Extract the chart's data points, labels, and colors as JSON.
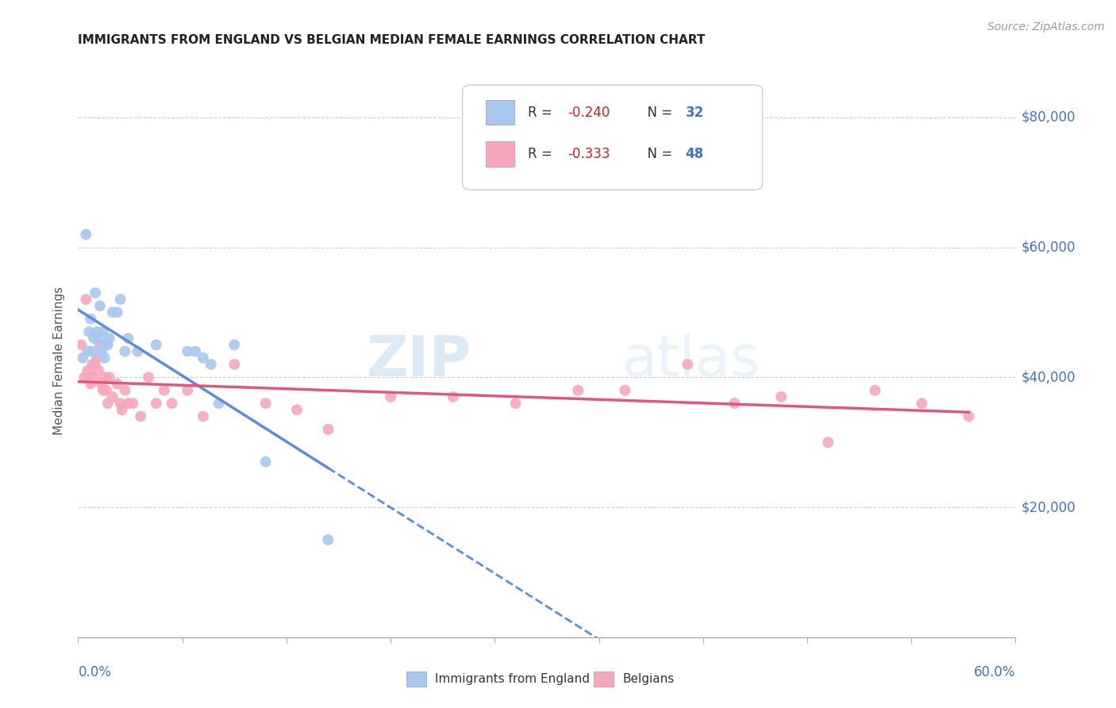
{
  "title": "IMMIGRANTS FROM ENGLAND VS BELGIAN MEDIAN FEMALE EARNINGS CORRELATION CHART",
  "source": "Source: ZipAtlas.com",
  "ylabel": "Median Female Earnings",
  "xmin": 0.0,
  "xmax": 0.6,
  "ymin": 0,
  "ymax": 85000,
  "legend_label1": "Immigrants from England",
  "legend_label2": "Belgians",
  "blue_color": "#A8C8F0",
  "pink_color": "#F5A8BC",
  "blue_line": "#5B8DD9",
  "pink_line": "#E05878",
  "axis_label_color": "#4472C4",
  "watermark": "ZIPatlas",
  "watermark_zip": "ZIP",
  "watermark_atlas": "atlas",
  "england_x": [
    0.003,
    0.005,
    0.006,
    0.007,
    0.008,
    0.009,
    0.01,
    0.011,
    0.012,
    0.013,
    0.014,
    0.015,
    0.016,
    0.017,
    0.018,
    0.019,
    0.02,
    0.022,
    0.025,
    0.027,
    0.03,
    0.032,
    0.038,
    0.05,
    0.07,
    0.075,
    0.08,
    0.085,
    0.09,
    0.1,
    0.12,
    0.16
  ],
  "england_y": [
    43000,
    62000,
    44000,
    47000,
    49000,
    44000,
    46000,
    53000,
    47000,
    46000,
    51000,
    44000,
    47000,
    43000,
    45000,
    45000,
    46000,
    50000,
    50000,
    52000,
    44000,
    46000,
    44000,
    45000,
    44000,
    44000,
    43000,
    42000,
    36000,
    45000,
    27000,
    15000
  ],
  "belgian_x": [
    0.002,
    0.004,
    0.005,
    0.006,
    0.007,
    0.008,
    0.009,
    0.01,
    0.011,
    0.012,
    0.013,
    0.014,
    0.015,
    0.016,
    0.017,
    0.018,
    0.019,
    0.02,
    0.022,
    0.025,
    0.027,
    0.028,
    0.03,
    0.032,
    0.035,
    0.04,
    0.045,
    0.05,
    0.055,
    0.06,
    0.07,
    0.08,
    0.1,
    0.12,
    0.14,
    0.16,
    0.2,
    0.24,
    0.28,
    0.32,
    0.35,
    0.39,
    0.42,
    0.45,
    0.48,
    0.51,
    0.54,
    0.57
  ],
  "belgian_y": [
    45000,
    40000,
    52000,
    41000,
    40000,
    39000,
    42000,
    40000,
    42000,
    43000,
    41000,
    45000,
    39000,
    38000,
    40000,
    38000,
    36000,
    40000,
    37000,
    39000,
    36000,
    35000,
    38000,
    36000,
    36000,
    34000,
    40000,
    36000,
    38000,
    36000,
    38000,
    34000,
    42000,
    36000,
    35000,
    32000,
    37000,
    37000,
    36000,
    38000,
    38000,
    42000,
    36000,
    37000,
    30000,
    38000,
    36000,
    34000
  ]
}
